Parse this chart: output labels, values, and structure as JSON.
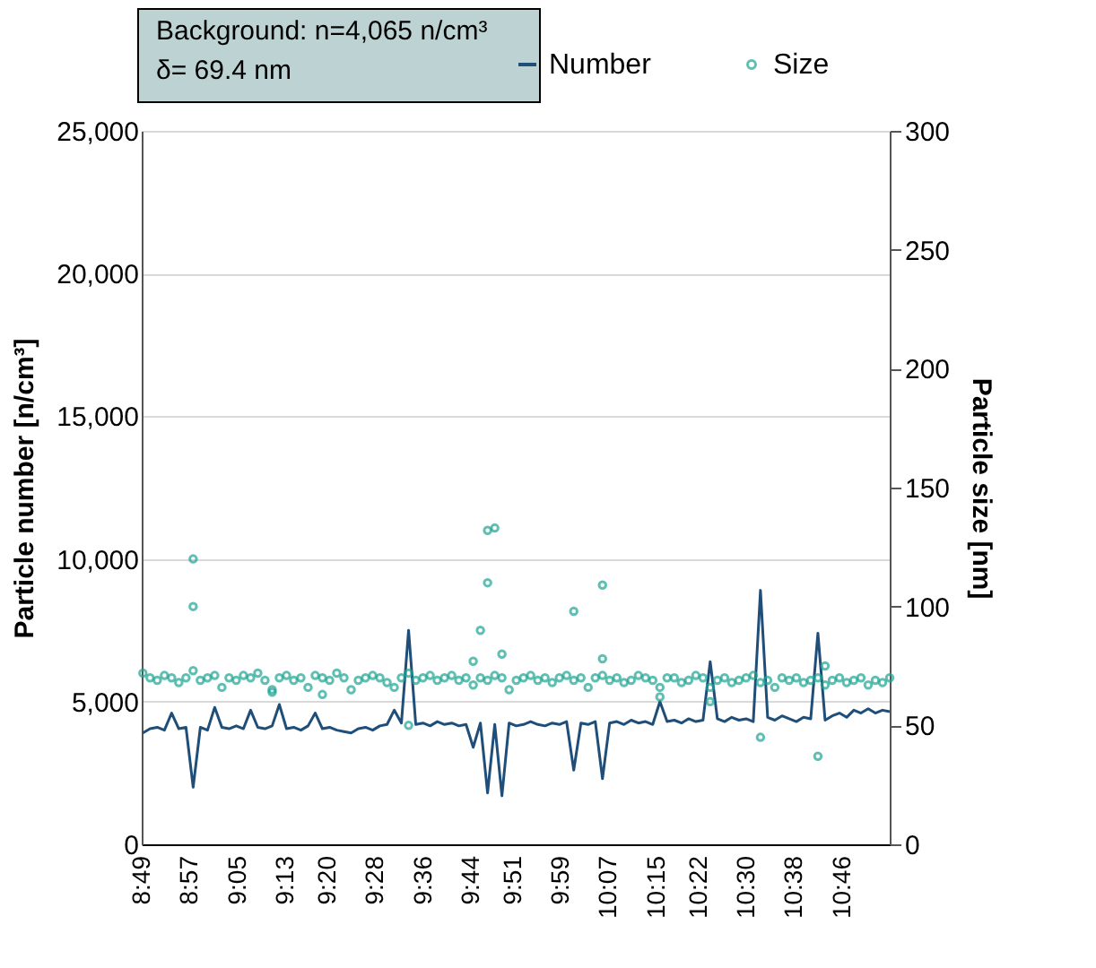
{
  "chart_data": {
    "type": "line",
    "ylabel": "Particle number [n/cm³]",
    "y2label": "Particle size [nm]",
    "annotations": [
      "Background: n=4,065 n/cm³",
      "δ= 69.4 nm"
    ],
    "x": [
      8.82,
      8.84,
      8.86,
      8.88,
      8.9,
      8.92,
      8.94,
      8.96,
      8.98,
      9.0,
      9.02,
      9.04,
      9.06,
      9.08,
      9.1,
      9.12,
      9.14,
      9.16,
      9.18,
      9.2,
      9.22,
      9.24,
      9.26,
      9.28,
      9.3,
      9.32,
      9.34,
      9.36,
      9.38,
      9.4,
      9.42,
      9.44,
      9.46,
      9.48,
      9.5,
      9.52,
      9.54,
      9.56,
      9.58,
      9.6,
      9.62,
      9.64,
      9.66,
      9.68,
      9.7,
      9.72,
      9.74,
      9.76,
      9.78,
      9.8,
      9.82,
      9.84,
      9.86,
      9.88,
      9.9,
      9.92,
      9.94,
      9.96,
      9.98,
      10.0,
      10.02,
      10.04,
      10.06,
      10.08,
      10.1,
      10.12,
      10.14,
      10.16,
      10.18,
      10.2,
      10.22,
      10.24,
      10.26,
      10.28,
      10.3,
      10.32,
      10.34,
      10.36,
      10.38,
      10.4,
      10.42,
      10.44,
      10.46,
      10.48,
      10.5,
      10.52,
      10.54,
      10.56,
      10.58,
      10.6,
      10.62,
      10.64,
      10.66,
      10.68,
      10.7,
      10.72,
      10.74,
      10.76,
      10.78,
      10.8,
      10.82,
      10.84,
      10.86,
      10.88,
      10.9
    ],
    "series": [
      {
        "name": "Number",
        "color": "#1f4e79",
        "values": [
          3900,
          4050,
          4100,
          4000,
          4600,
          4050,
          4100,
          2000,
          4100,
          4000,
          4800,
          4100,
          4050,
          4150,
          4050,
          4700,
          4100,
          4050,
          4150,
          4900,
          4050,
          4100,
          4000,
          4150,
          4600,
          4050,
          4100,
          4000,
          3950,
          3900,
          4050,
          4100,
          4000,
          4150,
          4200,
          4700,
          4250,
          7500,
          4200,
          4250,
          4150,
          4300,
          4200,
          4250,
          4150,
          4200,
          3400,
          4250,
          1800,
          4200,
          1700,
          4250,
          4150,
          4200,
          4300,
          4200,
          4150,
          4250,
          4200,
          4300,
          2600,
          4250,
          4200,
          4300,
          2300,
          4250,
          4300,
          4200,
          4350,
          4250,
          4300,
          4200,
          5000,
          4300,
          4350,
          4250,
          4400,
          4300,
          4350,
          6400,
          4400,
          4300,
          4450,
          4350,
          4400,
          4300,
          8900,
          4450,
          4350,
          4500,
          4400,
          4300,
          4450,
          4400,
          7400,
          4350,
          4500,
          4600,
          4450,
          4700,
          4600,
          4750,
          4600,
          4700,
          4650
        ]
      },
      {
        "name": "Size",
        "type": "scatter",
        "marker": "circle",
        "axis": "y2",
        "color": "#1ea593",
        "x": [
          8.82,
          8.84,
          8.86,
          8.88,
          8.9,
          8.92,
          8.94,
          8.96,
          8.98,
          9.0,
          9.02,
          9.04,
          9.06,
          9.08,
          9.1,
          9.12,
          9.14,
          9.16,
          9.18,
          9.2,
          9.22,
          9.24,
          9.26,
          9.28,
          9.3,
          9.32,
          9.34,
          9.36,
          9.38,
          9.4,
          9.42,
          9.44,
          9.46,
          9.48,
          9.5,
          9.52,
          9.54,
          9.56,
          9.58,
          9.6,
          9.62,
          9.64,
          9.66,
          9.68,
          9.7,
          9.72,
          9.74,
          9.76,
          9.78,
          9.8,
          9.82,
          9.84,
          9.86,
          9.88,
          9.9,
          9.92,
          9.94,
          9.96,
          9.98,
          10.0,
          10.02,
          10.04,
          10.06,
          10.08,
          10.1,
          10.12,
          10.14,
          10.16,
          10.18,
          10.2,
          10.22,
          10.24,
          10.26,
          10.28,
          10.3,
          10.32,
          10.34,
          10.36,
          10.38,
          10.4,
          10.42,
          10.44,
          10.46,
          10.48,
          10.5,
          10.52,
          10.54,
          10.56,
          10.58,
          10.6,
          10.62,
          10.64,
          10.66,
          10.68,
          10.7,
          10.72,
          10.74,
          10.76,
          10.78,
          10.8,
          10.82,
          10.84,
          10.86,
          10.88,
          10.9,
          8.96,
          8.96,
          9.18,
          9.32,
          9.56,
          9.74,
          9.76,
          9.78,
          9.78,
          9.8,
          9.82,
          10.02,
          10.1,
          10.1,
          10.26,
          10.4,
          10.54,
          10.7,
          10.72
        ],
        "values": [
          72,
          70,
          69,
          71,
          70,
          68,
          70,
          73,
          69,
          70,
          71,
          66,
          70,
          69,
          71,
          70,
          72,
          69,
          65,
          70,
          71,
          69,
          70,
          66,
          71,
          70,
          69,
          72,
          70,
          65,
          69,
          70,
          71,
          70,
          68,
          66,
          70,
          72,
          69,
          70,
          71,
          69,
          70,
          71,
          69,
          70,
          67,
          70,
          69,
          71,
          70,
          65,
          69,
          70,
          71,
          69,
          70,
          68,
          70,
          71,
          69,
          70,
          66,
          70,
          71,
          69,
          70,
          68,
          69,
          71,
          70,
          69,
          66,
          70,
          70,
          68,
          69,
          71,
          70,
          66,
          69,
          70,
          68,
          69,
          70,
          71,
          68,
          69,
          66,
          70,
          69,
          70,
          68,
          69,
          70,
          67,
          69,
          70,
          68,
          69,
          70,
          67,
          69,
          68,
          70,
          120,
          100,
          64,
          63,
          50,
          77,
          90,
          132,
          110,
          133,
          80,
          98,
          109,
          78,
          62,
          60,
          45,
          37,
          75
        ]
      }
    ],
    "xlim": [
      8.8167,
      10.9
    ],
    "xticks": [
      {
        "value": 8.8167,
        "label": "8:49"
      },
      {
        "value": 8.95,
        "label": "8:57"
      },
      {
        "value": 9.0833,
        "label": "9:05"
      },
      {
        "value": 9.2167,
        "label": "9:13"
      },
      {
        "value": 9.3333,
        "label": "9:20"
      },
      {
        "value": 9.4667,
        "label": "9:28"
      },
      {
        "value": 9.6,
        "label": "9:36"
      },
      {
        "value": 9.7333,
        "label": "9:44"
      },
      {
        "value": 9.85,
        "label": "9:51"
      },
      {
        "value": 9.9833,
        "label": "9:59"
      },
      {
        "value": 10.1167,
        "label": "10:07"
      },
      {
        "value": 10.25,
        "label": "10:15"
      },
      {
        "value": 10.3667,
        "label": "10:22"
      },
      {
        "value": 10.5,
        "label": "10:30"
      },
      {
        "value": 10.6333,
        "label": "10:38"
      },
      {
        "value": 10.7667,
        "label": "10:46"
      }
    ],
    "ylim": [
      0,
      25000
    ],
    "yticks": [
      0,
      {
        "value": 5000,
        "label": "5,000"
      },
      {
        "value": 10000,
        "label": "10,000"
      },
      {
        "value": 15000,
        "label": "15,000"
      },
      {
        "value": 20000,
        "label": "20,000"
      },
      {
        "value": 25000,
        "label": "25,000"
      }
    ],
    "y2lim": [
      0,
      300
    ],
    "y2ticks": [
      0,
      50,
      100,
      150,
      200,
      250,
      300
    ],
    "grid": "y",
    "legend": "top right",
    "line_style": "solid"
  }
}
